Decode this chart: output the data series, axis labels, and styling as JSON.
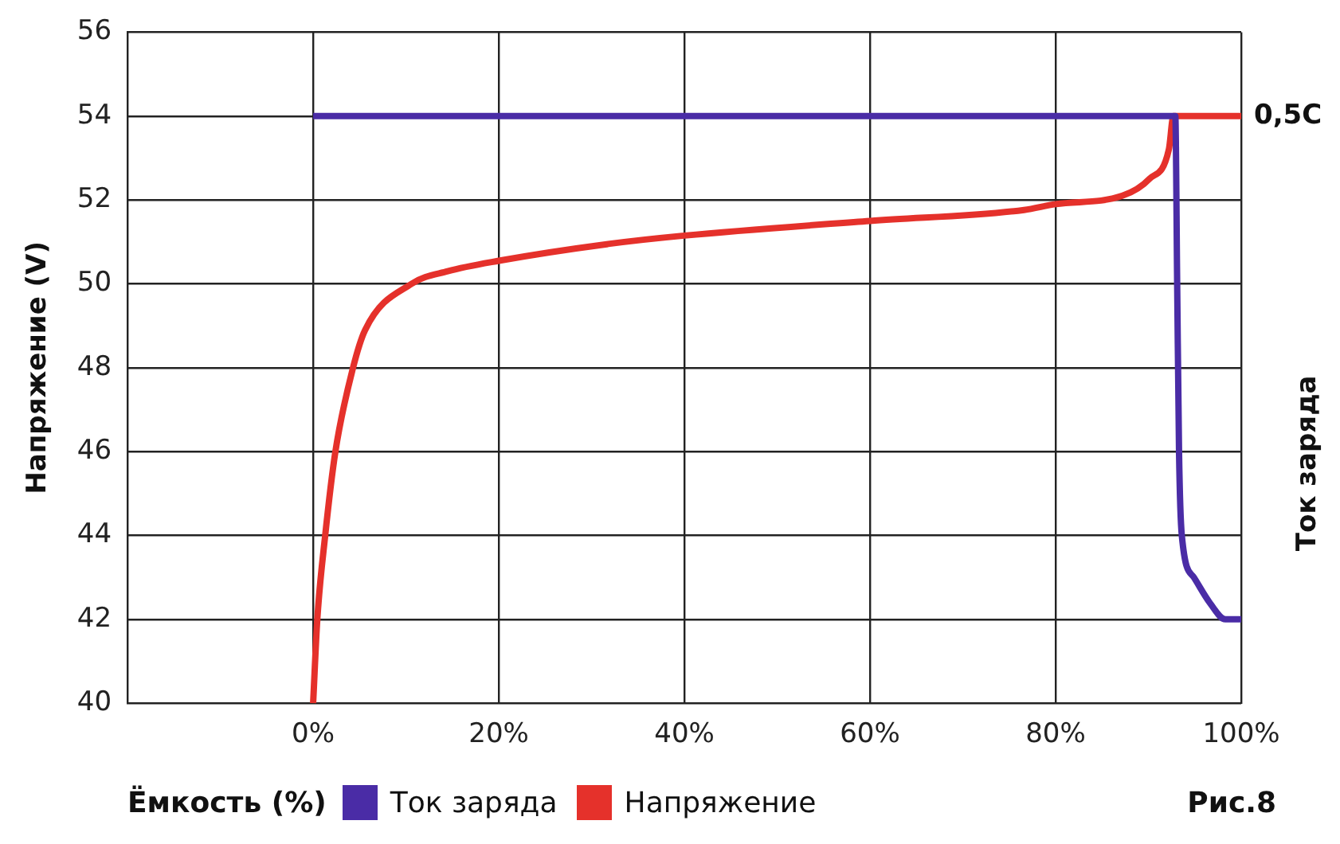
{
  "chart_data": {
    "type": "line",
    "xlabel": "Ёмкость (%)",
    "ylabel": "Напряжение (V)",
    "y2label": "Ток заряда",
    "xlim": [
      -20,
      100
    ],
    "xticks": [
      {
        "value": -20,
        "label": null
      },
      {
        "value": 0,
        "label": "0%"
      },
      {
        "value": 20,
        "label": "20%"
      },
      {
        "value": 40,
        "label": "40%"
      },
      {
        "value": 60,
        "label": "60%"
      },
      {
        "value": 80,
        "label": "80%"
      },
      {
        "value": 100,
        "label": "100%"
      }
    ],
    "ylim": [
      40,
      56
    ],
    "yticks": [
      40,
      42,
      44,
      46,
      48,
      50,
      52,
      54,
      56
    ],
    "annotations": [
      "Рис.8",
      {
        "text": "0,5C",
        "x": 100,
        "y": 54
      }
    ],
    "grid": true,
    "legend": "bottom",
    "series": [
      {
        "name": "Ток заряда",
        "color": "#4a2ca6",
        "x": [
          0,
          92.9,
          93.1,
          93.3,
          93.6,
          94.9,
          96.6,
          98.3,
          100
        ],
        "values": [
          54,
          54,
          50,
          46,
          44,
          43,
          42.4,
          42,
          42
        ]
      },
      {
        "name": "Напряжение",
        "color": "#e5312b",
        "x": [
          0,
          0.45,
          1.3,
          2.4,
          4.3,
          5.6,
          10.6,
          14.5,
          20,
          31.8,
          40,
          60,
          76.6,
          80,
          87.2,
          90.1,
          92.2,
          92.7,
          100
        ],
        "values": [
          40,
          42,
          44,
          46,
          48,
          48.9,
          50,
          50.3,
          50.55,
          50.95,
          51.15,
          51.5,
          51.76,
          51.9,
          52.1,
          52.5,
          53.2,
          54,
          54
        ]
      }
    ]
  }
}
